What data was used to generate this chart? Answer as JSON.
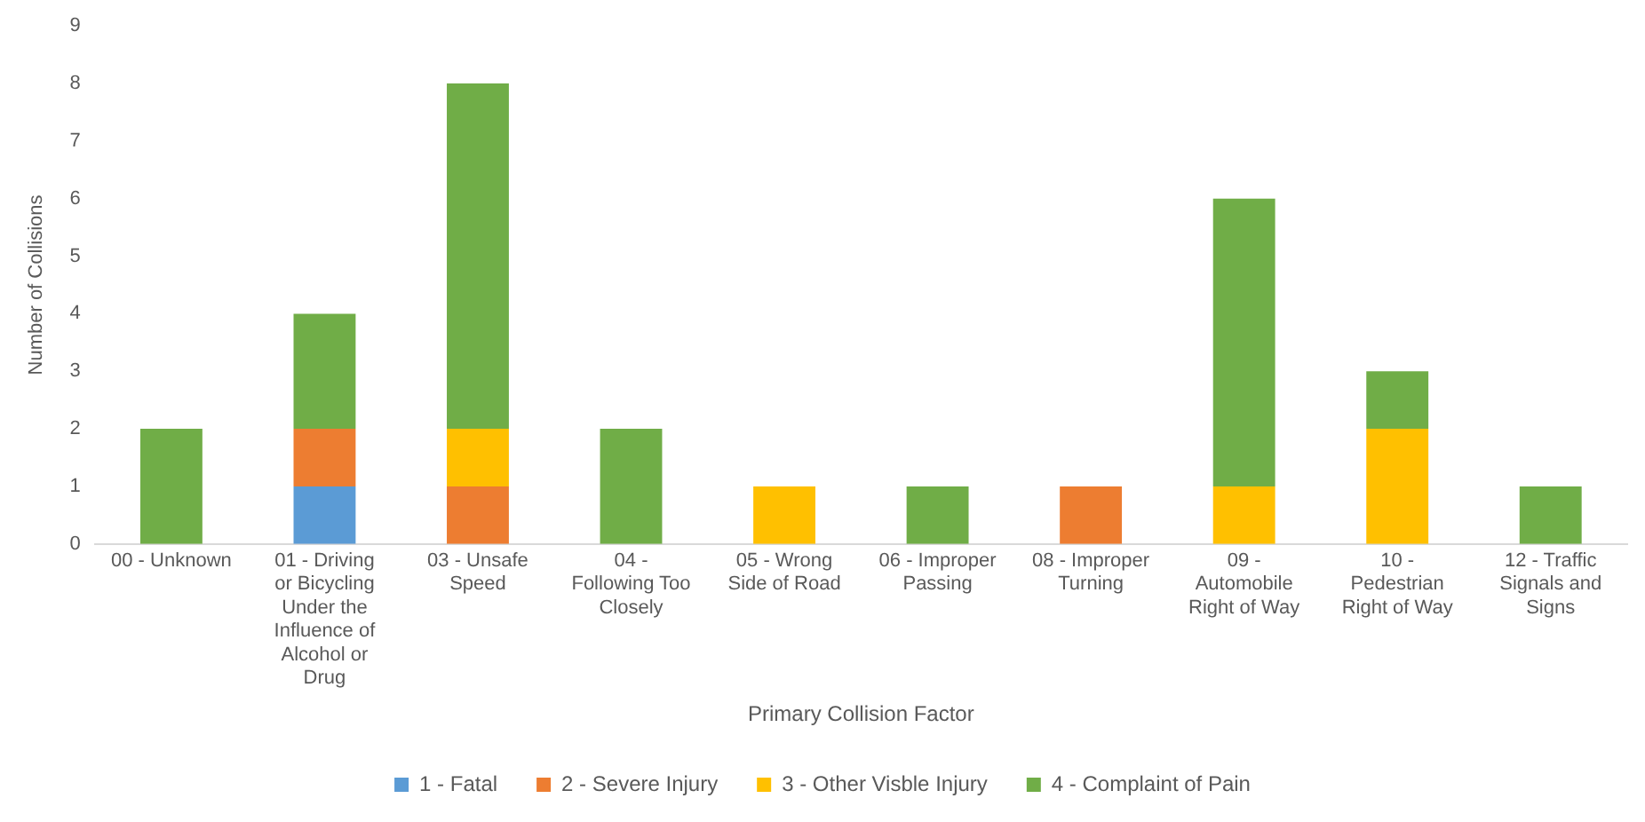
{
  "chart_data": {
    "type": "bar",
    "stacked": true,
    "xlabel": "Primary Collision Factor",
    "ylabel": "Number of Collisions",
    "categories": [
      "00 - Unknown",
      "01 - Driving or Bicycling Under the Influence of Alcohol or Drug",
      "03 - Unsafe Speed",
      "04 - Following Too Closely",
      "05 - Wrong Side of Road",
      "06 - Improper Passing",
      "08 - Improper Turning",
      "09 - Automobile Right of Way",
      "10 - Pedestrian Right of Way",
      "12 - Traffic Signals and Signs"
    ],
    "series": [
      {
        "name": "1 - Fatal",
        "color": "#5b9bd5",
        "values": [
          0,
          1,
          0,
          0,
          0,
          0,
          0,
          0,
          0,
          0
        ]
      },
      {
        "name": "2 - Severe Injury",
        "color": "#ed7d31",
        "values": [
          0,
          1,
          1,
          0,
          0,
          0,
          1,
          0,
          0,
          0
        ]
      },
      {
        "name": "3 - Other Visble Injury",
        "color": "#ffc000",
        "values": [
          0,
          0,
          1,
          0,
          1,
          0,
          0,
          1,
          2,
          0
        ]
      },
      {
        "name": "4 - Complaint of Pain",
        "color": "#70ad47",
        "values": [
          2,
          2,
          6,
          2,
          0,
          1,
          0,
          5,
          1,
          1
        ]
      }
    ],
    "ylim": [
      0,
      9
    ],
    "yticks": [
      0,
      1,
      2,
      3,
      4,
      5,
      6,
      7,
      8,
      9
    ],
    "grid": false,
    "legend": "bottom"
  }
}
